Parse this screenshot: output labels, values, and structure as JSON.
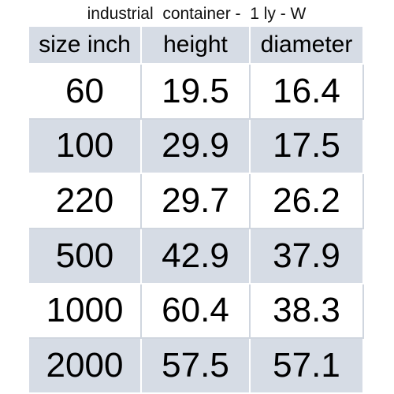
{
  "table": {
    "title": "industrial  container -  1 ly - W",
    "header": [
      "size inch",
      "height",
      "diameter"
    ],
    "rows": [
      [
        60,
        19.5,
        16.4
      ],
      [
        100,
        29.9,
        17.5
      ],
      [
        220,
        29.7,
        26.2
      ],
      [
        500,
        42.9,
        37.9
      ],
      [
        1000,
        60.4,
        38.3
      ],
      [
        2000,
        57.5,
        57.1
      ]
    ]
  }
}
